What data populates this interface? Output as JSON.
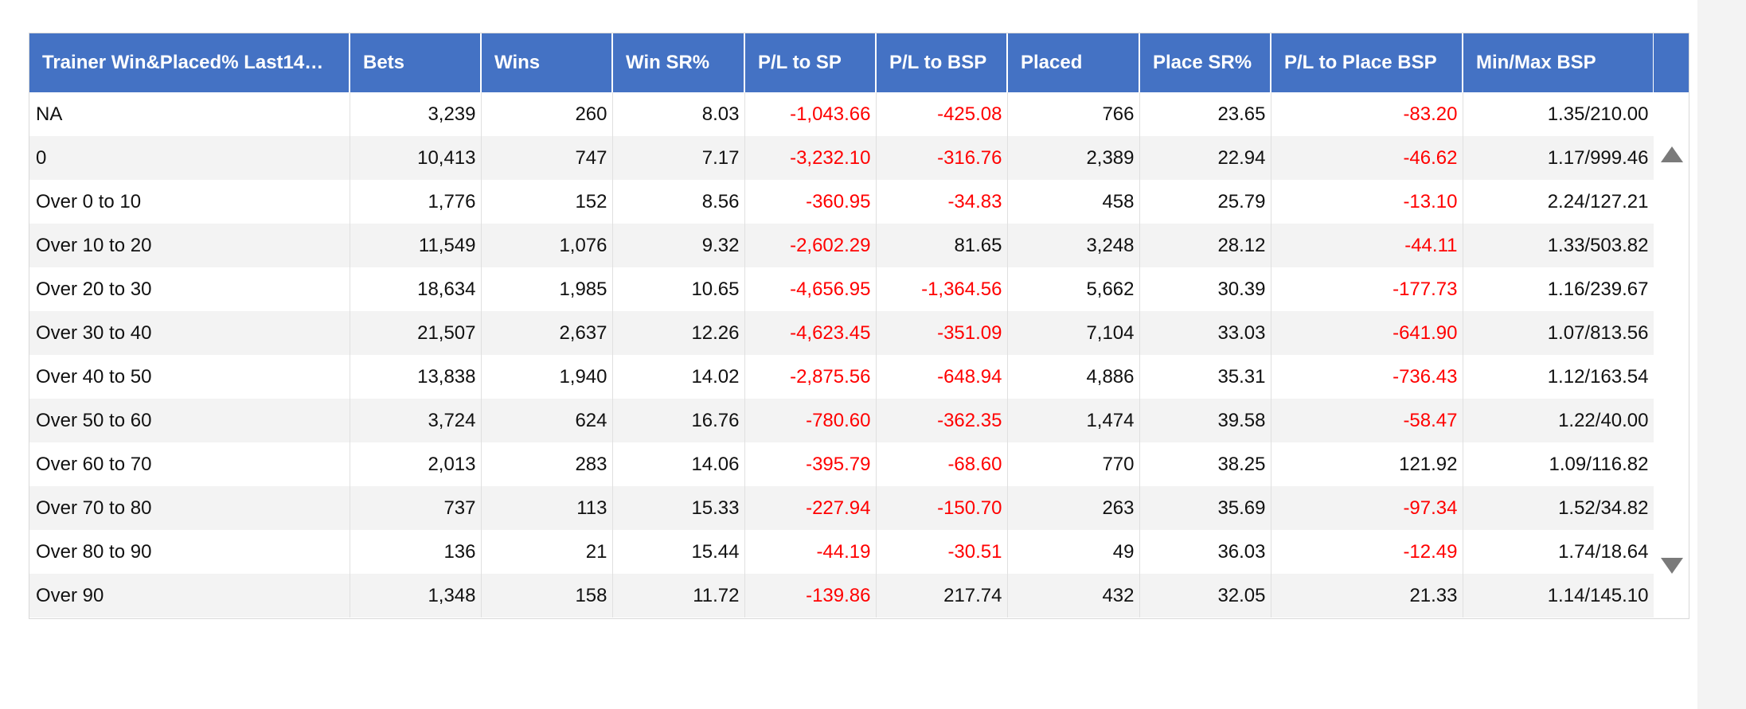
{
  "table": {
    "columns": [
      "Trainer Win&Placed% Last14…",
      "Bets",
      "Wins",
      "Win SR%",
      "P/L to SP",
      "P/L to BSP",
      "Placed",
      "Place SR%",
      "P/L to Place BSP",
      "Min/Max BSP"
    ],
    "rows": [
      [
        "NA",
        "3,239",
        "260",
        "8.03",
        "-1,043.66",
        "-425.08",
        "766",
        "23.65",
        "-83.20",
        "1.35/210.00"
      ],
      [
        "0",
        "10,413",
        "747",
        "7.17",
        "-3,232.10",
        "-316.76",
        "2,389",
        "22.94",
        "-46.62",
        "1.17/999.46"
      ],
      [
        "Over 0 to 10",
        "1,776",
        "152",
        "8.56",
        "-360.95",
        "-34.83",
        "458",
        "25.79",
        "-13.10",
        "2.24/127.21"
      ],
      [
        "Over 10 to 20",
        "11,549",
        "1,076",
        "9.32",
        "-2,602.29",
        "81.65",
        "3,248",
        "28.12",
        "-44.11",
        "1.33/503.82"
      ],
      [
        "Over 20 to 30",
        "18,634",
        "1,985",
        "10.65",
        "-4,656.95",
        "-1,364.56",
        "5,662",
        "30.39",
        "-177.73",
        "1.16/239.67"
      ],
      [
        "Over 30 to 40",
        "21,507",
        "2,637",
        "12.26",
        "-4,623.45",
        "-351.09",
        "7,104",
        "33.03",
        "-641.90",
        "1.07/813.56"
      ],
      [
        "Over 40 to 50",
        "13,838",
        "1,940",
        "14.02",
        "-2,875.56",
        "-648.94",
        "4,886",
        "35.31",
        "-736.43",
        "1.12/163.54"
      ],
      [
        "Over 50 to 60",
        "3,724",
        "624",
        "16.76",
        "-780.60",
        "-362.35",
        "1,474",
        "39.58",
        "-58.47",
        "1.22/40.00"
      ],
      [
        "Over 60 to 70",
        "2,013",
        "283",
        "14.06",
        "-395.79",
        "-68.60",
        "770",
        "38.25",
        "121.92",
        "1.09/116.82"
      ],
      [
        "Over 70 to 80",
        "737",
        "113",
        "15.33",
        "-227.94",
        "-150.70",
        "263",
        "35.69",
        "-97.34",
        "1.52/34.82"
      ],
      [
        "Over 80 to 90",
        "136",
        "21",
        "15.44",
        "-44.19",
        "-30.51",
        "49",
        "36.03",
        "-12.49",
        "1.74/18.64"
      ],
      [
        "Over 90",
        "1,348",
        "158",
        "11.72",
        "-139.86",
        "217.74",
        "432",
        "32.05",
        "21.33",
        "1.14/145.10"
      ]
    ]
  },
  "colors": {
    "header_bg": "#4472c4",
    "negative": "#ff0000",
    "row_alt": "#f3f3f3"
  },
  "icons": {
    "scroll_up": "triangle-up",
    "scroll_down": "triangle-down"
  }
}
